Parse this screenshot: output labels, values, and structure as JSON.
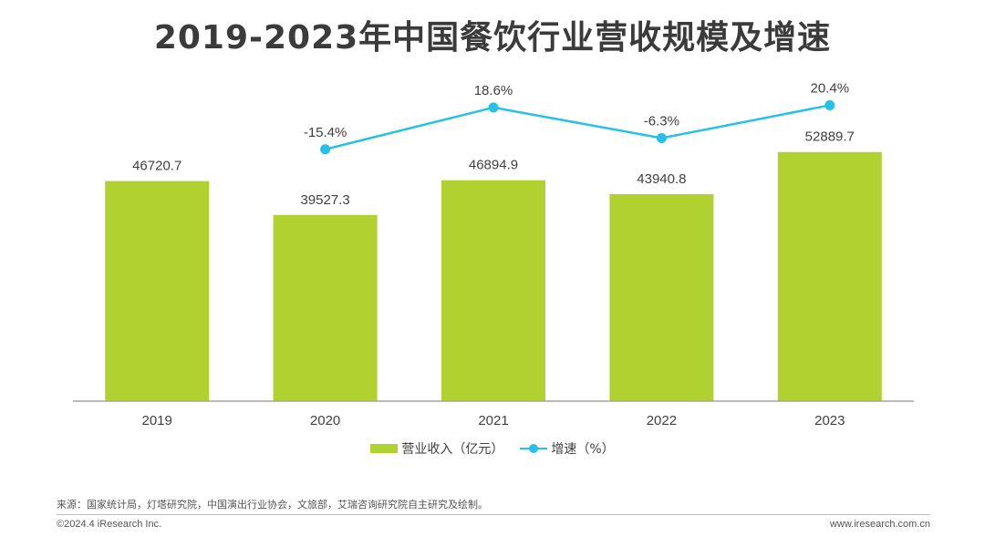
{
  "title": "2019-2023年中国餐饮行业营收规模及增速",
  "colors": {
    "bar": "#b1d131",
    "line": "#27c0e6",
    "axis": "#a6a6a6"
  },
  "chart_data": {
    "type": "bar",
    "categories": [
      "2019",
      "2020",
      "2021",
      "2022",
      "2023"
    ],
    "series": [
      {
        "name": "营业收入（亿元）",
        "type": "bar",
        "values": [
          46720.7,
          39527.3,
          46894.9,
          43940.8,
          52889.7
        ],
        "labels": [
          "46720.7",
          "39527.3",
          "46894.9",
          "43940.8",
          "52889.7"
        ]
      },
      {
        "name": "增速（%）",
        "type": "line",
        "values": [
          null,
          -15.4,
          18.6,
          -6.3,
          20.4
        ],
        "labels": [
          "",
          "-15.4%",
          "18.6%",
          "-6.3%",
          "20.4%"
        ]
      }
    ],
    "ylim_bar": [
      0,
      60000
    ],
    "ylim_line": [
      -20,
      25
    ],
    "legend_position": "bottom",
    "grid": false
  },
  "legend": {
    "bar_label": "营业收入（亿元）",
    "line_label": "增速（%）"
  },
  "footer": {
    "source": "来源：国家统计局，灯塔研究院，中国演出行业协会，文旅部，艾瑞咨询研究院自主研究及绘制。",
    "copyright": "©2024.4 iResearch Inc.",
    "website": "www.iresearch.com.cn"
  }
}
